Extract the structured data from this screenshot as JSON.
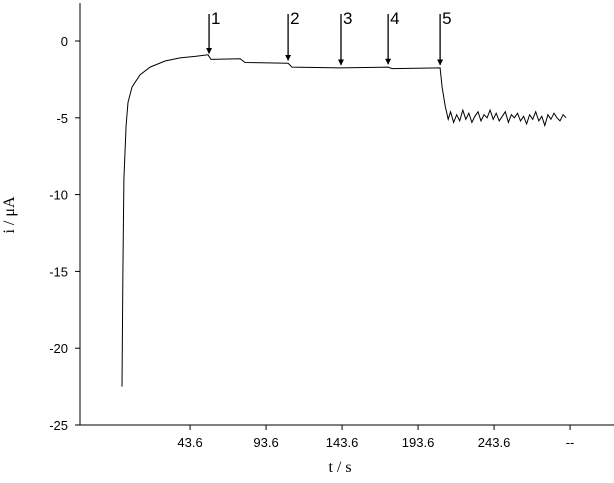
{
  "chart_data": {
    "type": "line",
    "x_label": "t / s",
    "y_label": "i / μA",
    "xlim": [
      -28.8,
      322.5
    ],
    "ylim": [
      -25,
      2.5
    ],
    "xticks": [
      43.6,
      93.6,
      143.6,
      193.6,
      243.6,
      {
        "value": 293.6,
        "label": "--"
      }
    ],
    "yticks": [
      -25,
      -20,
      -15,
      -10,
      -5,
      0
    ],
    "series": [
      {
        "color": "#000000",
        "x": [
          -1.2,
          -0.6,
          0.1,
          1.5,
          2.8,
          5.4,
          10.7,
          17.3,
          27.1,
          37.0,
          46.9,
          55.4,
          57.4,
          76.5,
          79.8,
          108.1,
          110.7,
          142.3,
          173.9,
          176.5,
          208.1,
          209.4,
          211.4,
          213.4,
          215,
          217,
          219,
          221,
          223,
          225,
          227,
          229,
          231,
          233,
          235,
          237,
          239,
          241,
          243,
          245,
          247,
          249,
          251,
          253,
          255,
          257,
          259,
          261,
          263,
          265,
          267,
          269,
          271,
          273,
          275,
          277,
          279,
          281,
          283,
          285,
          287,
          289,
          291
        ],
        "values": [
          -22.5,
          -15,
          -9,
          -5.5,
          -4,
          -3,
          -2.2,
          -1.7,
          -1.3,
          -1.1,
          -1.0,
          -0.9,
          -1.2,
          -1.15,
          -1.4,
          -1.45,
          -1.7,
          -1.75,
          -1.7,
          -1.8,
          -1.75,
          -3,
          -4.2,
          -5.1,
          -4.6,
          -5.3,
          -4.8,
          -5.2,
          -4.5,
          -5.1,
          -4.7,
          -5.3,
          -4.9,
          -4.6,
          -5.2,
          -4.8,
          -5.0,
          -4.5,
          -5.1,
          -4.7,
          -5.2,
          -4.9,
          -4.6,
          -5.3,
          -4.8,
          -5.0,
          -4.7,
          -5.2,
          -4.9,
          -5.4,
          -4.8,
          -5.1,
          -4.6,
          -5.2,
          -4.9,
          -5.5,
          -4.8,
          -5.1,
          -4.7,
          -5.0,
          -5.2,
          -4.8,
          -5.0
        ]
      }
    ],
    "annotations": [
      {
        "text": "1",
        "x": 56.1
      },
      {
        "text": "2",
        "x": 108.1
      },
      {
        "text": "3",
        "x": 142.9
      },
      {
        "text": "4",
        "x": 173.9
      },
      {
        "text": "5",
        "x": 208.1
      }
    ]
  }
}
